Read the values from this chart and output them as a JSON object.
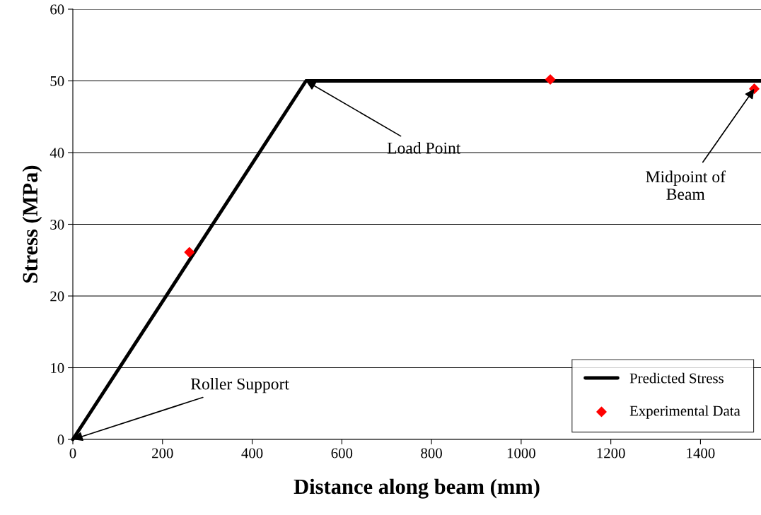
{
  "chart_data": {
    "type": "line",
    "xlabel": "Distance along beam (mm)",
    "ylabel": "Stress (MPa)",
    "xlim": [
      0,
      1535
    ],
    "xticks": [
      0,
      200,
      400,
      600,
      800,
      1000,
      1200,
      1400
    ],
    "ylim": [
      0,
      60
    ],
    "yticks": [
      0,
      10,
      20,
      30,
      40,
      50,
      60
    ],
    "grid": "y",
    "legend": "bottom right",
    "series": [
      {
        "name": "Predicted Stress",
        "color": "#000000",
        "x": [
          0,
          520,
          1535
        ],
        "values": [
          0,
          50,
          50
        ],
        "marker": "none",
        "line_style": "solid"
      },
      {
        "name": "Experimental Data",
        "type": "scatter",
        "color": "#ff0000",
        "x": [
          260,
          1065,
          1520
        ],
        "values": [
          26.1,
          50.2,
          48.9
        ],
        "marker": "diamond"
      }
    ],
    "annotations": [
      {
        "text": "Roller Support",
        "x": 0,
        "y": 0
      },
      {
        "text": "Load Point",
        "x": 520,
        "y": 50
      },
      {
        "text": "Midpoint of\nBeam",
        "x": 1520,
        "y": 48.9
      }
    ]
  }
}
